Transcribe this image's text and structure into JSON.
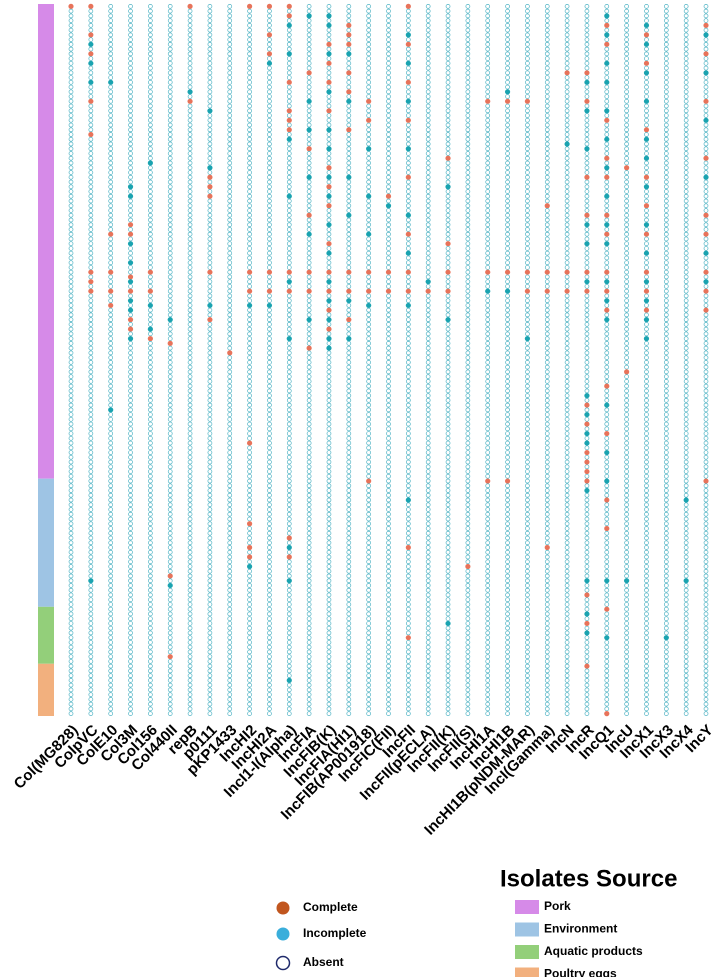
{
  "chart_data": {
    "type": "dot-matrix",
    "complete_label": "Complete",
    "incomplete_label": "Incomplete",
    "absent_label": "Absent",
    "complete_color": "#e8735a",
    "incomplete_color": "#1aa3b0",
    "absent_color": "#4fb3c4",
    "legend_complete_color": "#c1561f",
    "legend_incomplete_color": "#3aaedb",
    "legend_absent_color": "#1f2a6b",
    "source_title": "Isolates Source",
    "groups": [
      {
        "name": "Pork",
        "rows": 100,
        "color": "#d68ae8"
      },
      {
        "name": "Environment",
        "rows": 27,
        "color": "#9ec4e4"
      },
      {
        "name": "Aquatic products",
        "rows": 12,
        "color": "#93cf7a"
      },
      {
        "name": "Poultry eggs",
        "rows": 11,
        "color": "#f2b07e"
      }
    ],
    "columns": [
      {
        "name": "Col(MG828)",
        "complete": [
          0
        ],
        "incomplete": []
      },
      {
        "name": "ColpVC",
        "complete": [
          0,
          6,
          10,
          20,
          27,
          56,
          58,
          60
        ],
        "incomplete": [
          8,
          12,
          16,
          121
        ]
      },
      {
        "name": "ColE10",
        "complete": [
          48,
          56,
          60,
          63
        ],
        "incomplete": [
          16,
          85
        ]
      },
      {
        "name": "Col3M",
        "complete": [
          46,
          48,
          57,
          60,
          66,
          68
        ],
        "incomplete": [
          38,
          40,
          50,
          54,
          58,
          62,
          64,
          70
        ]
      },
      {
        "name": "Col156",
        "complete": [
          56,
          60,
          70
        ],
        "incomplete": [
          33,
          63,
          68
        ]
      },
      {
        "name": "Col440II",
        "complete": [
          71,
          120,
          137
        ],
        "incomplete": [
          66,
          122
        ]
      },
      {
        "name": "repB",
        "complete": [
          0,
          20
        ],
        "incomplete": [
          18
        ]
      },
      {
        "name": "p0111",
        "complete": [
          36,
          38,
          40,
          56,
          66
        ],
        "incomplete": [
          22,
          34,
          63
        ]
      },
      {
        "name": "pKP1433",
        "complete": [
          73
        ],
        "incomplete": []
      },
      {
        "name": "IncHI2",
        "complete": [
          0,
          56,
          60,
          92,
          109,
          114,
          116
        ],
        "incomplete": [
          63,
          118
        ]
      },
      {
        "name": "IncHI2A",
        "complete": [
          0,
          6,
          10,
          56,
          60
        ],
        "incomplete": [
          12,
          63
        ]
      },
      {
        "name": "IncI1-I(Alpha)",
        "complete": [
          0,
          2,
          16,
          22,
          24,
          26,
          56,
          60,
          112,
          116
        ],
        "incomplete": [
          4,
          10,
          28,
          40,
          58,
          70,
          114,
          121,
          142
        ]
      },
      {
        "name": "IncFIA",
        "complete": [
          14,
          30,
          44,
          56,
          60,
          72
        ],
        "incomplete": [
          2,
          20,
          26,
          36,
          48,
          66
        ]
      },
      {
        "name": "IncFIB(K)",
        "complete": [
          8,
          12,
          16,
          22,
          34,
          38,
          42,
          50,
          56,
          60,
          64,
          68
        ],
        "incomplete": [
          2,
          4,
          10,
          18,
          26,
          30,
          36,
          40,
          46,
          52,
          58,
          62,
          66,
          70,
          72
        ]
      },
      {
        "name": "IncFIA(HI1)",
        "complete": [
          4,
          6,
          8,
          14,
          18,
          26,
          56,
          60,
          66
        ],
        "incomplete": [
          10,
          20,
          36,
          44,
          62,
          70
        ]
      },
      {
        "name": "IncFIB(AP001918)",
        "complete": [
          20,
          24,
          56,
          60,
          100
        ],
        "incomplete": [
          30,
          40,
          48,
          63
        ]
      },
      {
        "name": "IncFIC(FII)",
        "complete": [
          40,
          56,
          60
        ],
        "incomplete": [
          42
        ]
      },
      {
        "name": "IncFII",
        "complete": [
          0,
          8,
          16,
          24,
          36,
          48,
          56,
          60,
          114,
          133
        ],
        "incomplete": [
          6,
          12,
          20,
          30,
          44,
          52,
          63,
          104
        ]
      },
      {
        "name": "IncFII(pECLA)",
        "complete": [
          60
        ],
        "incomplete": [
          58
        ]
      },
      {
        "name": "IncFII(K)",
        "complete": [
          32,
          50,
          56,
          60
        ],
        "incomplete": [
          38,
          66,
          130
        ]
      },
      {
        "name": "IncFII(S)",
        "complete": [
          118
        ],
        "incomplete": []
      },
      {
        "name": "IncHI1A",
        "complete": [
          20,
          56,
          100
        ],
        "incomplete": [
          60
        ]
      },
      {
        "name": "IncHI1B",
        "complete": [
          20,
          56,
          100
        ],
        "incomplete": [
          18,
          60
        ]
      },
      {
        "name": "IncHI1B(pNDM-MAR)",
        "complete": [
          20,
          56,
          60
        ],
        "incomplete": [
          70
        ]
      },
      {
        "name": "IncI(Gamma)",
        "complete": [
          42,
          56,
          60,
          114
        ],
        "incomplete": []
      },
      {
        "name": "IncN",
        "complete": [
          14,
          56,
          60
        ],
        "incomplete": [
          29
        ]
      },
      {
        "name": "IncR",
        "complete": [
          14,
          20,
          36,
          44,
          56,
          60,
          84,
          88,
          94,
          96,
          98,
          100,
          124,
          130,
          139
        ],
        "incomplete": [
          16,
          22,
          30,
          46,
          50,
          58,
          82,
          86,
          90,
          92,
          102,
          121,
          128,
          132
        ]
      },
      {
        "name": "IncQ1",
        "complete": [
          4,
          8,
          24,
          32,
          36,
          44,
          48,
          56,
          60,
          64,
          80,
          90,
          104,
          110,
          127,
          149
        ],
        "incomplete": [
          2,
          6,
          12,
          16,
          22,
          28,
          34,
          40,
          46,
          50,
          58,
          62,
          66,
          84,
          94,
          100,
          121,
          133
        ]
      },
      {
        "name": "IncU",
        "complete": [
          34,
          77
        ],
        "incomplete": [
          121
        ]
      },
      {
        "name": "IncX1",
        "complete": [
          6,
          12,
          26,
          36,
          42,
          48,
          56,
          60,
          64
        ],
        "incomplete": [
          4,
          8,
          14,
          20,
          28,
          32,
          38,
          46,
          52,
          58,
          62,
          66,
          70
        ]
      },
      {
        "name": "IncX3",
        "complete": [],
        "incomplete": [
          133
        ]
      },
      {
        "name": "IncX4",
        "complete": [],
        "incomplete": [
          104,
          121
        ]
      },
      {
        "name": "IncY",
        "complete": [
          4,
          10,
          20,
          32,
          44,
          48,
          56,
          60,
          64,
          100
        ],
        "incomplete": [
          6,
          14,
          24,
          36,
          52,
          58
        ]
      }
    ]
  }
}
